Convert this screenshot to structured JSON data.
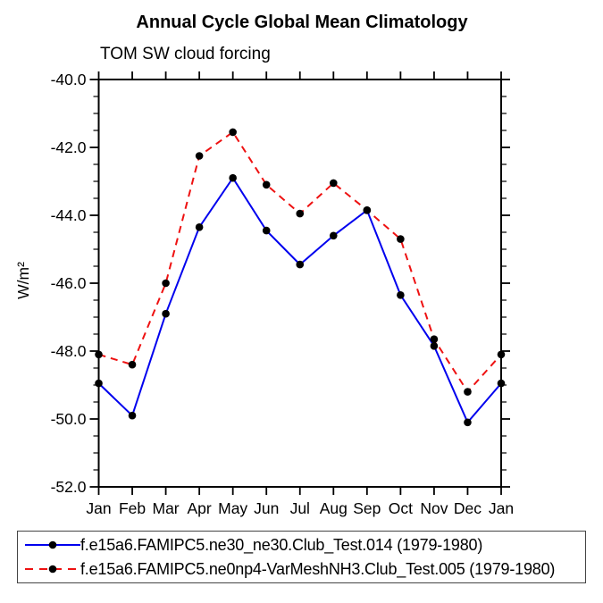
{
  "header": {
    "title": "Annual Cycle Global Mean Climatology",
    "subtitle": "TOM SW cloud forcing"
  },
  "chart_data": {
    "type": "line",
    "title": "Annual Cycle Global Mean Climatology",
    "subtitle": "TOM SW cloud forcing",
    "xlabel": "",
    "ylabel": "W/m²",
    "categories": [
      "Jan",
      "Feb",
      "Mar",
      "Apr",
      "May",
      "Jun",
      "Jul",
      "Aug",
      "Sep",
      "Oct",
      "Nov",
      "Dec",
      "Jan"
    ],
    "ylim": [
      -52.0,
      -40.0
    ],
    "y_major_step": 2.0,
    "y_minor_step": 0.5,
    "y_tick_labels": [
      "-40.0",
      "-42.0",
      "-44.0",
      "-46.0",
      "-48.0",
      "-50.0",
      "-52.0"
    ],
    "grid": false,
    "legend_position": "bottom",
    "series": [
      {
        "name": "f.e15a6.FAMIPC5.ne30_ne30.Club_Test.014 (1979-1980)",
        "color": "#0000ee",
        "line_style": "solid",
        "marker": "circle",
        "marker_color": "#000000",
        "values": [
          -48.95,
          -49.9,
          -46.9,
          -44.35,
          -42.9,
          -44.45,
          -45.45,
          -44.6,
          -43.85,
          -46.35,
          -47.85,
          -50.1,
          -48.95
        ]
      },
      {
        "name": "f.e15a6.FAMIPC5.ne0np4-VarMeshNH3.Club_Test.005 (1979-1980)",
        "color": "#ee1111",
        "line_style": "dashed",
        "marker": "circle",
        "marker_color": "#000000",
        "values": [
          -48.1,
          -48.4,
          -46.0,
          -42.25,
          -41.55,
          -43.1,
          -43.95,
          -43.05,
          -43.85,
          -44.7,
          -47.65,
          -49.2,
          -48.1
        ]
      }
    ],
    "axis_color": "#000000"
  }
}
